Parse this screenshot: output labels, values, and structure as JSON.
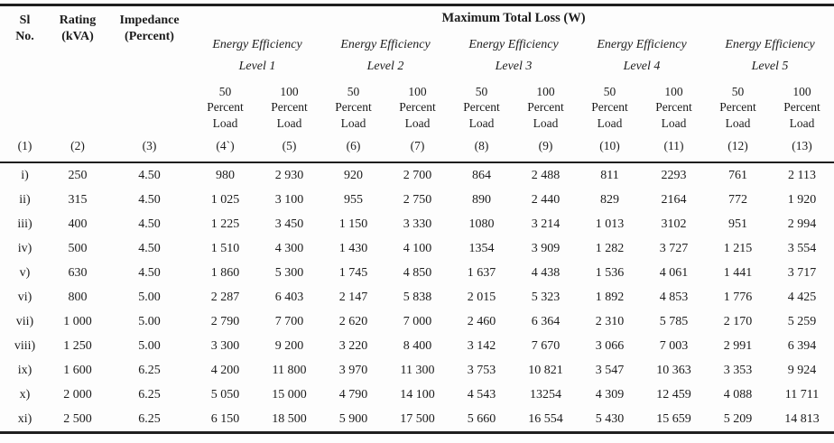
{
  "table": {
    "span_header": "Maximum Total Loss (W)",
    "fixed_headers": [
      {
        "label": "Sl\nNo."
      },
      {
        "label": "Rating\n(kVA)"
      },
      {
        "label": "Impedance\n(Percent)"
      }
    ],
    "level_groups": [
      {
        "line1": "Energy Efficiency",
        "line2": "Level 1"
      },
      {
        "line1": "Energy Efficiency",
        "line2": "Level 2"
      },
      {
        "line1": "Energy Efficiency",
        "line2": "Level 3"
      },
      {
        "line1": "Energy Efficiency",
        "line2": "Level 4"
      },
      {
        "line1": "Energy Efficiency",
        "line2": "Level 5"
      }
    ],
    "load_labels": [
      "50\nPercent\nLoad",
      "100\nPercent\nLoad",
      "50\nPercent\nLoad",
      "100\nPercent\nLoad",
      "50\nPercent\nLoad",
      "100\nPercent\nLoad",
      "50\nPercent\nLoad",
      "100\nPercent\nLoad",
      "50\nPercent\nLoad",
      "100\nPercent\nLoad"
    ],
    "col_numbers": [
      "(1)",
      "(2)",
      "(3)",
      "(4`)",
      "(5)",
      "(6)",
      "(7)",
      "(8)",
      "(9)",
      "(10)",
      "(11)",
      "(12)",
      "(13)"
    ],
    "rows": [
      {
        "sl": "i)",
        "cells": [
          "250",
          "4.50",
          "980",
          "2 930",
          "920",
          "2 700",
          "864",
          "2 488",
          "811",
          "2293",
          "761",
          "2 113"
        ]
      },
      {
        "sl": "ii)",
        "cells": [
          "315",
          "4.50",
          "1 025",
          "3 100",
          "955",
          "2 750",
          "890",
          "2 440",
          "829",
          "2164",
          "772",
          "1 920"
        ]
      },
      {
        "sl": "iii)",
        "cells": [
          "400",
          "4.50",
          "1 225",
          "3 450",
          "1 150",
          "3 330",
          "1080",
          "3 214",
          "1 013",
          "3102",
          "951",
          "2 994"
        ]
      },
      {
        "sl": "iv)",
        "cells": [
          "500",
          "4.50",
          "1 510",
          "4 300",
          "1 430",
          "4 100",
          "1354",
          "3 909",
          "1 282",
          "3 727",
          "1 215",
          "3 554"
        ]
      },
      {
        "sl": "v)",
        "cells": [
          "630",
          "4.50",
          "1 860",
          "5 300",
          "1 745",
          "4 850",
          "1 637",
          "4 438",
          "1 536",
          "4 061",
          "1 441",
          "3 717"
        ]
      },
      {
        "sl": "vi)",
        "cells": [
          "800",
          "5.00",
          "2 287",
          "6 403",
          "2 147",
          "5 838",
          "2 015",
          "5 323",
          "1 892",
          "4 853",
          "1 776",
          "4 425"
        ]
      },
      {
        "sl": "vii)",
        "cells": [
          "1 000",
          "5.00",
          "2 790",
          "7 700",
          "2 620",
          "7 000",
          "2 460",
          "6 364",
          "2 310",
          "5 785",
          "2 170",
          "5 259"
        ]
      },
      {
        "sl": "viii)",
        "cells": [
          "1 250",
          "5.00",
          "3 300",
          "9 200",
          "3 220",
          "8 400",
          "3 142",
          "7 670",
          "3 066",
          "7 003",
          "2 991",
          "6 394"
        ]
      },
      {
        "sl": "ix)",
        "cells": [
          "1 600",
          "6.25",
          "4 200",
          "11 800",
          "3 970",
          "11 300",
          "3 753",
          "10 821",
          "3 547",
          "10 363",
          "3 353",
          "9 924"
        ]
      },
      {
        "sl": "x)",
        "cells": [
          "2 000",
          "6.25",
          "5 050",
          "15 000",
          "4 790",
          "14 100",
          "4 543",
          "13254",
          "4 309",
          "12 459",
          "4 088",
          "11 711"
        ]
      },
      {
        "sl": "xi)",
        "cells": [
          "2 500",
          "6.25",
          "6 150",
          "18 500",
          "5 900",
          "17 500",
          "5 660",
          "16 554",
          "5 430",
          "15 659",
          "5 209",
          "14 813"
        ]
      }
    ]
  }
}
